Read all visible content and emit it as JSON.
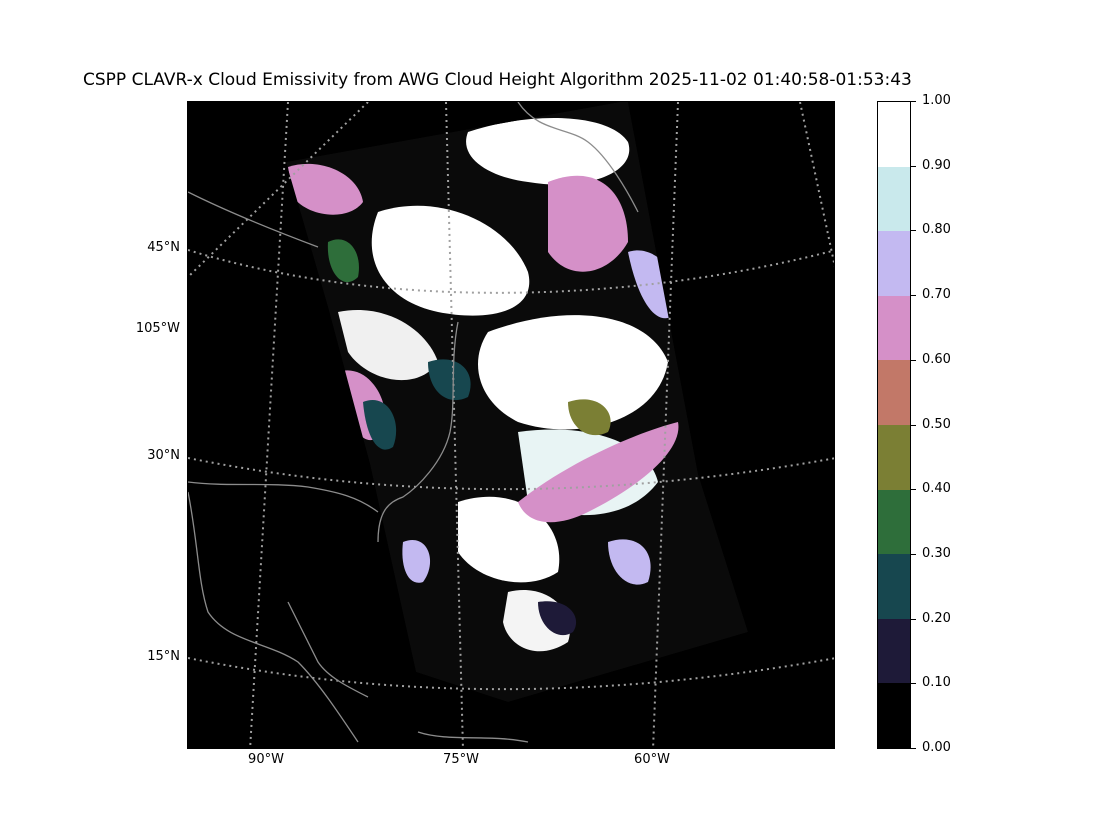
{
  "title": "CSPP CLAVR-x Cloud Emissivity from AWG Cloud Height Algorithm 2025-11-02 01:40:58-01:53:43",
  "map": {
    "lat_labels": [
      {
        "text": "45°N",
        "lat": 45
      },
      {
        "text": "30°N",
        "lat": 30
      },
      {
        "text": "15°N",
        "lat": 15
      }
    ],
    "lon_labels_left": [
      {
        "text": "105°W",
        "lon": -105
      }
    ],
    "lon_labels_bottom": [
      {
        "text": "90°W",
        "lon": -90
      },
      {
        "text": "75°W",
        "lon": -75
      },
      {
        "text": "60°W",
        "lon": -60
      }
    ],
    "colors": {
      "background": "#000000",
      "coastline": "#8c8c8c",
      "gridline": "#a0a0a0"
    }
  },
  "colorbar": {
    "ticks": [
      "0.00",
      "0.10",
      "0.20",
      "0.30",
      "0.40",
      "0.50",
      "0.60",
      "0.70",
      "0.80",
      "0.90",
      "1.00"
    ],
    "colors": [
      "#000000",
      "#1e1a38",
      "#17474f",
      "#2e6e3a",
      "#7b7f34",
      "#c27868",
      "#d590c8",
      "#c3b9f1",
      "#c9e9ec",
      "#ffffff"
    ]
  }
}
